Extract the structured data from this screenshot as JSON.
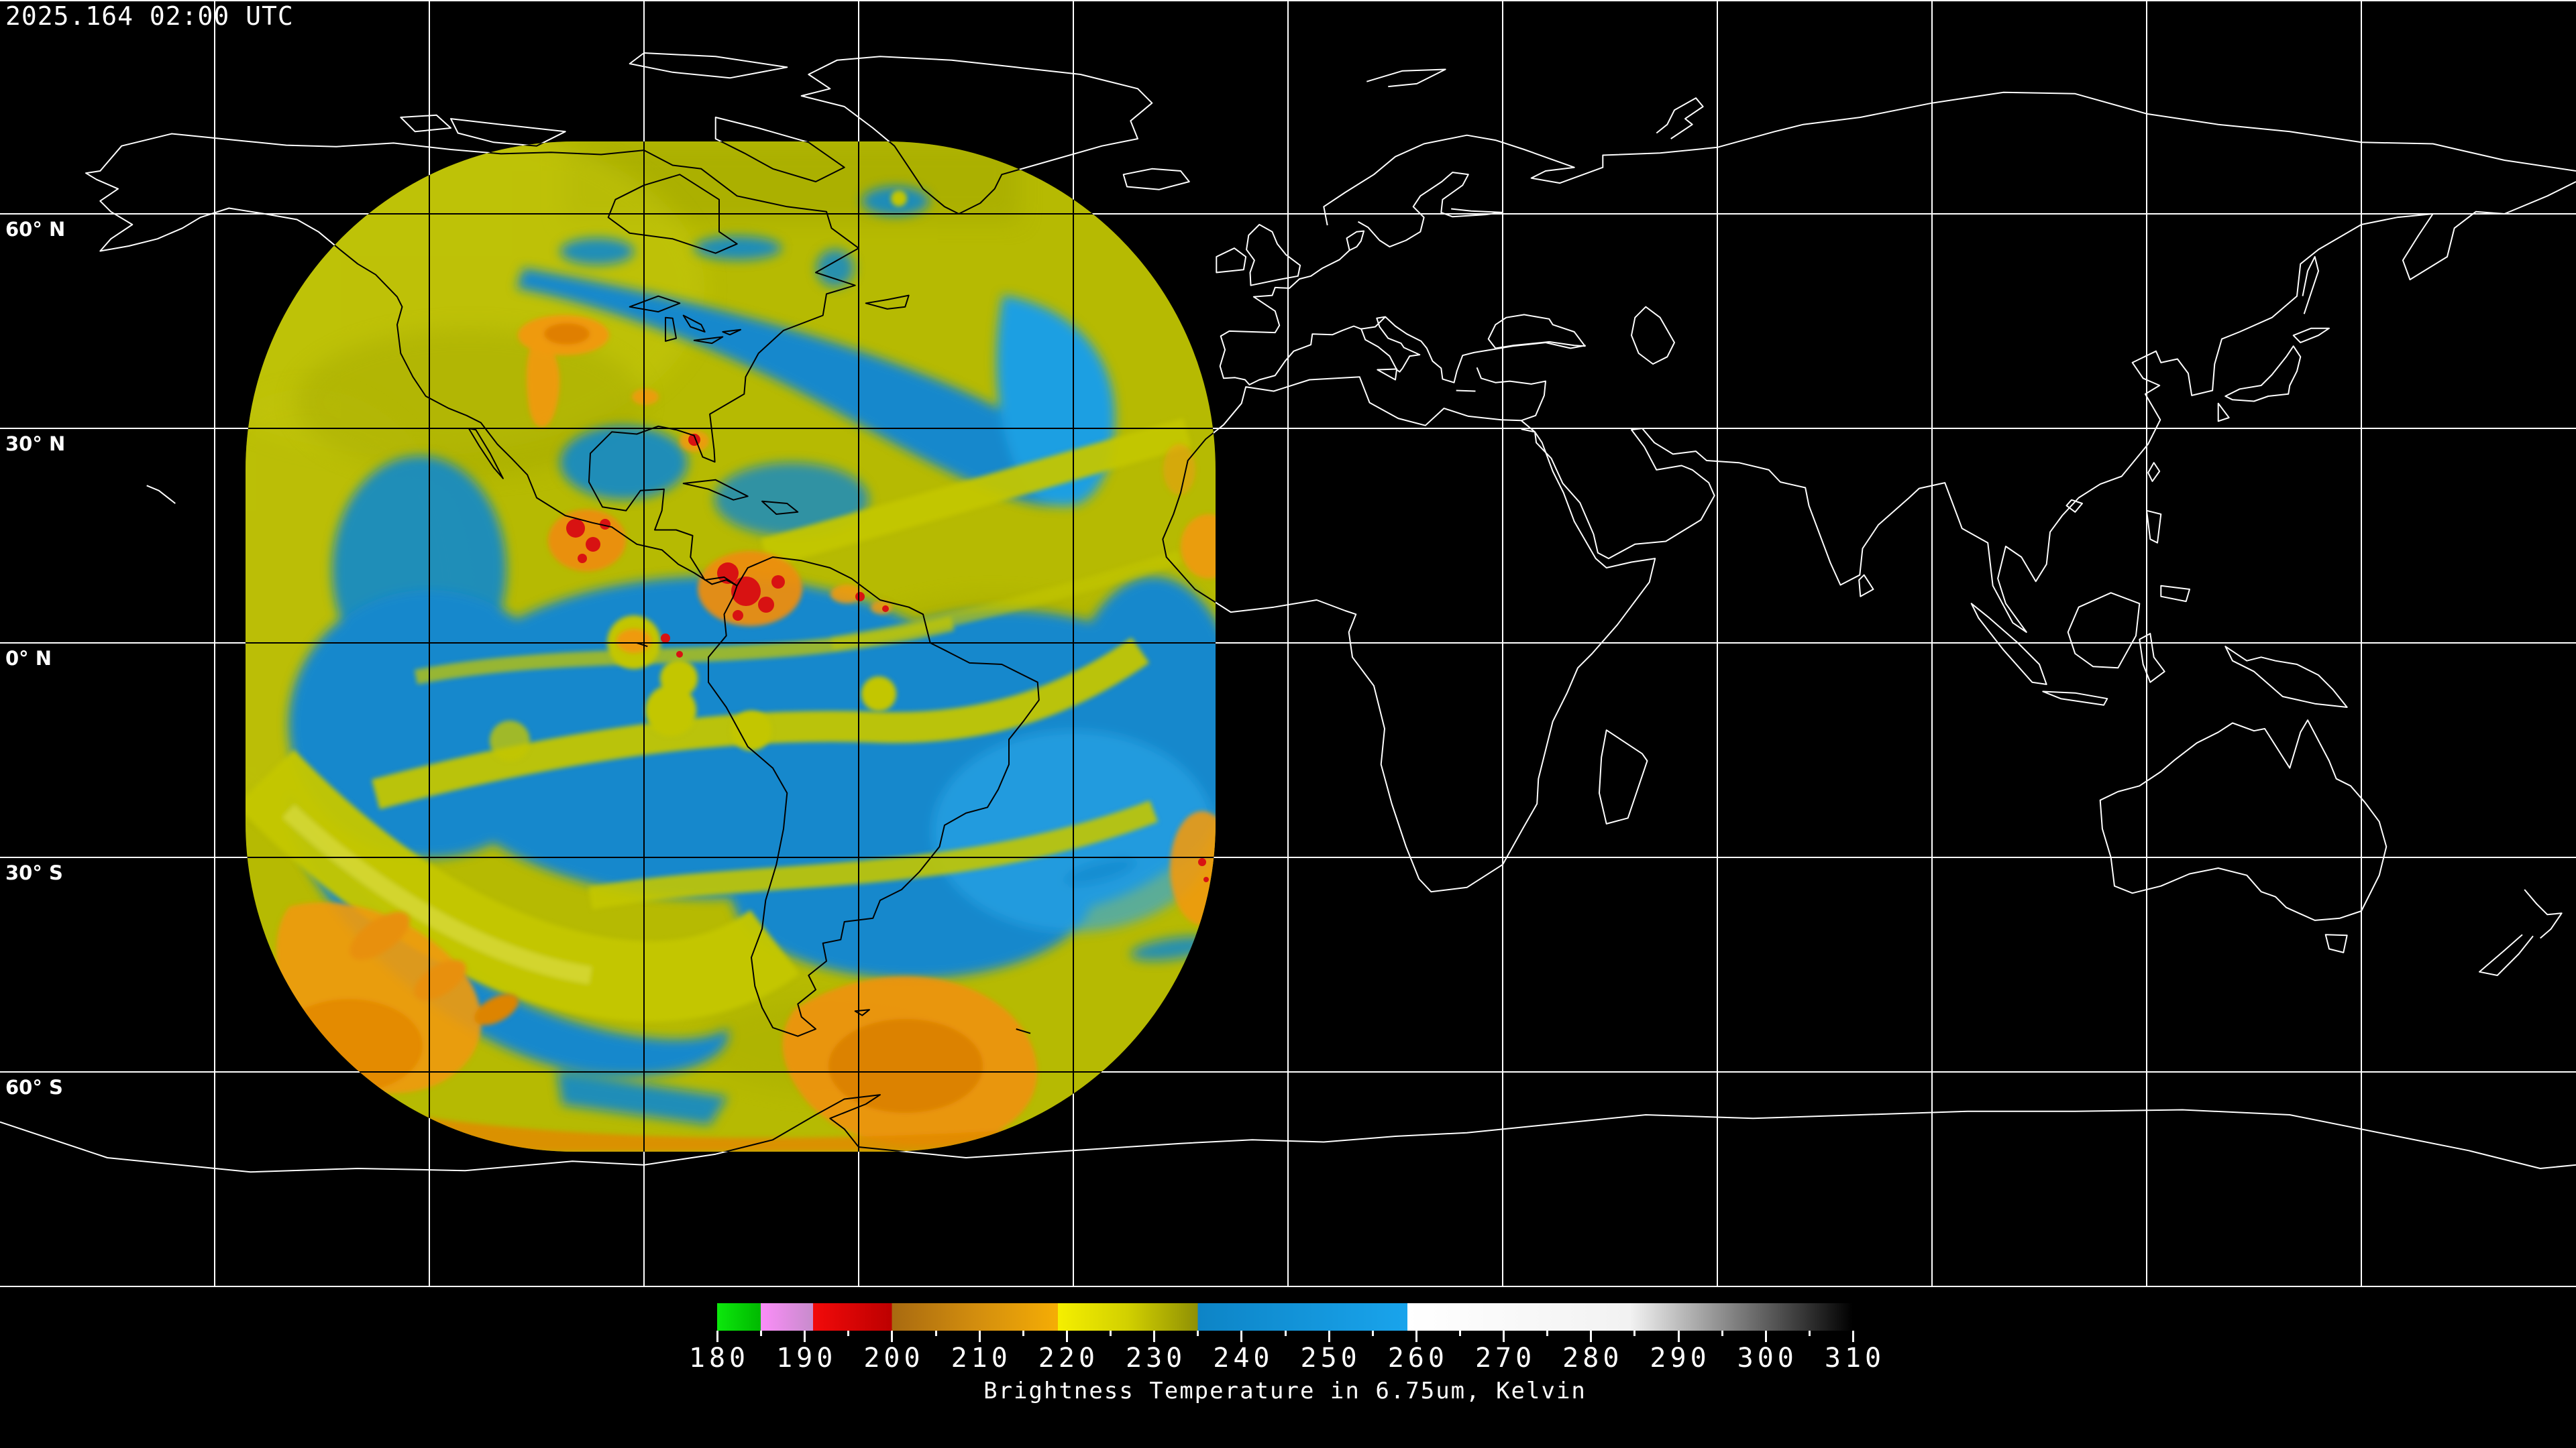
{
  "header": {
    "timestamp": "2025.164 02:00 UTC"
  },
  "map": {
    "background_color": "#000000",
    "gridline_color_outside_swath": "#ffffff",
    "gridline_color_inside_swath": "#000000",
    "coastline_color_outside_swath": "#ffffff",
    "coastline_color_inside_swath": "#000000",
    "grid_spacing_deg": 30,
    "latitude_labels": [
      {
        "text": "60° N",
        "lat": 60
      },
      {
        "text": "30° N",
        "lat": 30
      },
      {
        "text": "0° N",
        "lat": 0
      },
      {
        "text": "30° S",
        "lat": -30
      },
      {
        "text": "60° S",
        "lat": -60
      }
    ]
  },
  "swath": {
    "satellite_view": "full-disk water vapor swath over the Americas",
    "moist_yellow": "#b6ba02",
    "bright_yellow": "#c9cd12",
    "olive_shadow": "#9da300",
    "dry_blue": "#1388cc",
    "bright_blue": "#249fe4",
    "cold_orange": "#ef9a10",
    "deep_orange": "#dd8404",
    "very_cold_red": "#d81212"
  },
  "colorbar": {
    "title": "Brightness Temperature in 6.75um, Kelvin",
    "unit": "Kelvin",
    "min": 180,
    "max": 310,
    "labeled_ticks": [
      180,
      190,
      200,
      210,
      220,
      230,
      240,
      250,
      260,
      270,
      280,
      290,
      300,
      310
    ],
    "minor_tick_step": 5,
    "segments": [
      {
        "from": 180,
        "to": 185,
        "colors": [
          "#0ce80c",
          "#00b800"
        ]
      },
      {
        "from": 185,
        "to": 191,
        "colors": [
          "#fb8df8",
          "#c78ccc"
        ]
      },
      {
        "from": 191,
        "to": 200,
        "colors": [
          "#f20a0a",
          "#bd0000"
        ]
      },
      {
        "from": 200,
        "to": 219,
        "colors": [
          "#a86a10",
          "#d28d0e",
          "#f5ad05"
        ]
      },
      {
        "from": 219,
        "to": 235,
        "colors": [
          "#f5ef00",
          "#d2d000",
          "#8f9004"
        ]
      },
      {
        "from": 235,
        "to": 259,
        "colors": [
          "#0d84c6",
          "#19a4ec"
        ]
      },
      {
        "from": 259,
        "to": 310,
        "colors": [
          "#ffffff",
          "#f2f2f2",
          "#000000"
        ]
      }
    ]
  }
}
